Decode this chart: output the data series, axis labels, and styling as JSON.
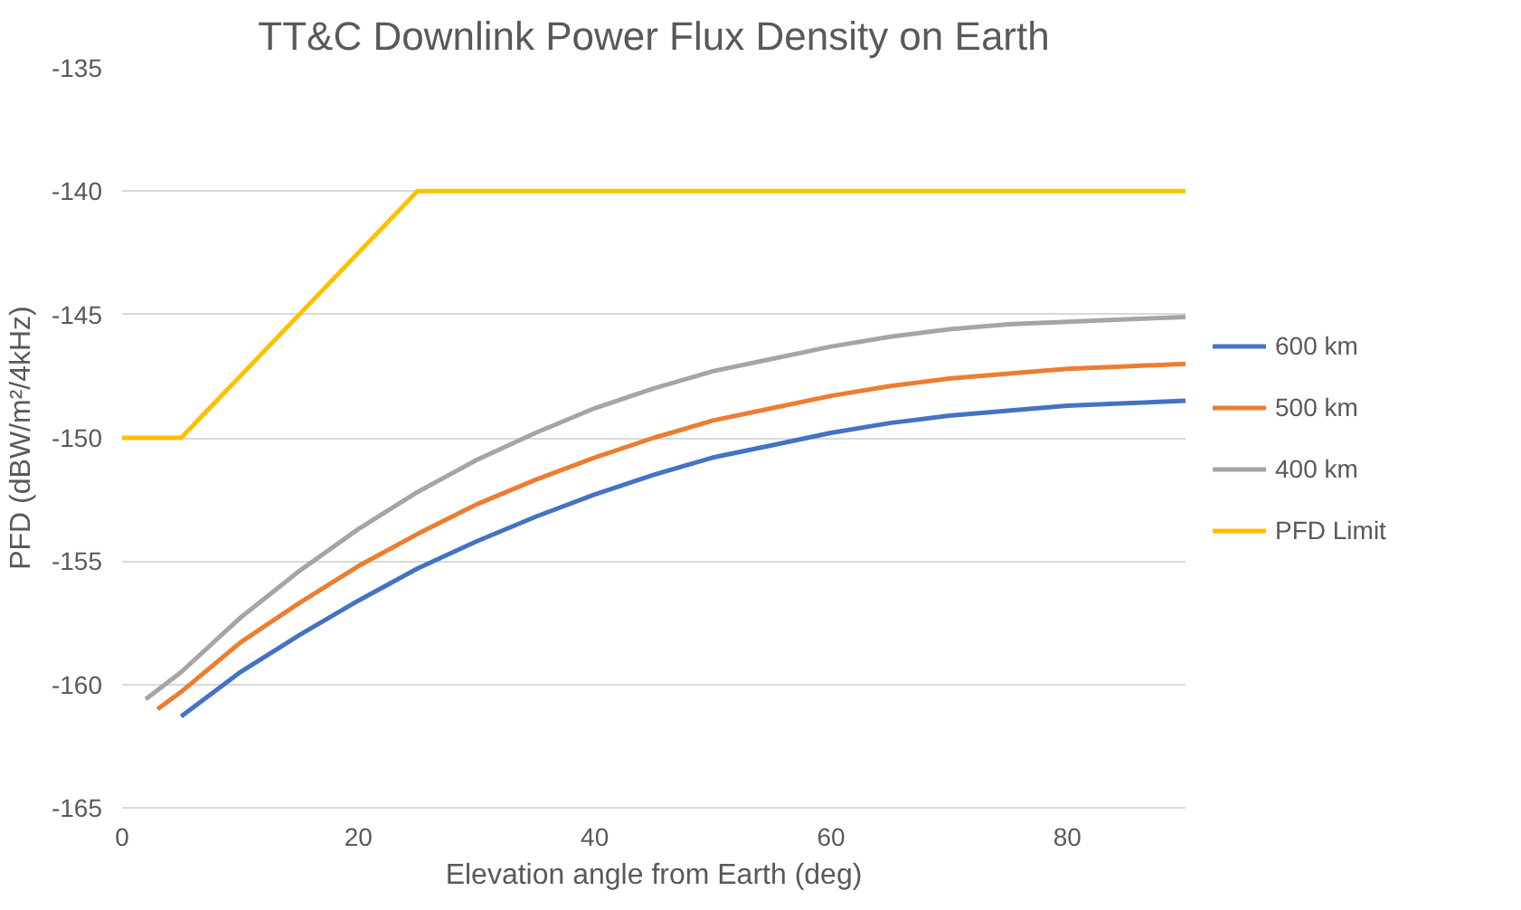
{
  "chart_data": {
    "type": "line",
    "title": "TT&C Downlink Power Flux Density on Earth",
    "xlabel": "Elevation angle from Earth (deg)",
    "ylabel": "PFD (dBW/m²/4kHz)",
    "xlim": [
      0,
      90
    ],
    "xticks": [
      0,
      20,
      40,
      60,
      80
    ],
    "ylim": [
      -165,
      -135
    ],
    "yticks": [
      -165,
      -160,
      -155,
      -150,
      -145,
      -140,
      -135
    ],
    "grid": "y",
    "legend": "right",
    "marker": "none",
    "line_style": "solid",
    "series": [
      {
        "name": "600 km",
        "color": "#4472c4",
        "x": [
          5,
          10,
          15,
          20,
          25,
          30,
          35,
          40,
          45,
          50,
          55,
          60,
          65,
          70,
          75,
          80,
          85,
          90
        ],
        "values": [
          -161.3,
          -159.5,
          -158,
          -156.6,
          -155.3,
          -154.2,
          -153.2,
          -152.3,
          -151.5,
          -150.8,
          -150.3,
          -149.8,
          -149.4,
          -149.1,
          -148.9,
          -148.7,
          -148.6,
          -148.5
        ]
      },
      {
        "name": "500 km",
        "color": "#ed7d31",
        "x": [
          3,
          5,
          10,
          15,
          20,
          25,
          30,
          35,
          40,
          45,
          50,
          55,
          60,
          65,
          70,
          75,
          80,
          85,
          90
        ],
        "values": [
          -161,
          -160.3,
          -158.3,
          -156.7,
          -155.2,
          -153.9,
          -152.7,
          -151.7,
          -150.8,
          -150,
          -149.3,
          -148.8,
          -148.3,
          -147.9,
          -147.6,
          -147.4,
          -147.2,
          -147.1,
          -147
        ]
      },
      {
        "name": "400 km",
        "color": "#a5a5a5",
        "x": [
          2,
          5,
          10,
          15,
          20,
          25,
          30,
          35,
          40,
          45,
          50,
          55,
          60,
          65,
          70,
          75,
          80,
          85,
          90
        ],
        "values": [
          -160.6,
          -159.5,
          -157.3,
          -155.4,
          -153.7,
          -152.2,
          -150.9,
          -149.8,
          -148.8,
          -148,
          -147.3,
          -146.8,
          -146.3,
          -145.9,
          -145.6,
          -145.4,
          -145.3,
          -145.2,
          -145.1
        ]
      },
      {
        "name": "PFD Limit",
        "color": "#ffc000",
        "x": [
          0,
          5,
          25,
          90
        ],
        "values": [
          -150,
          -150,
          -140,
          -140
        ]
      }
    ]
  }
}
